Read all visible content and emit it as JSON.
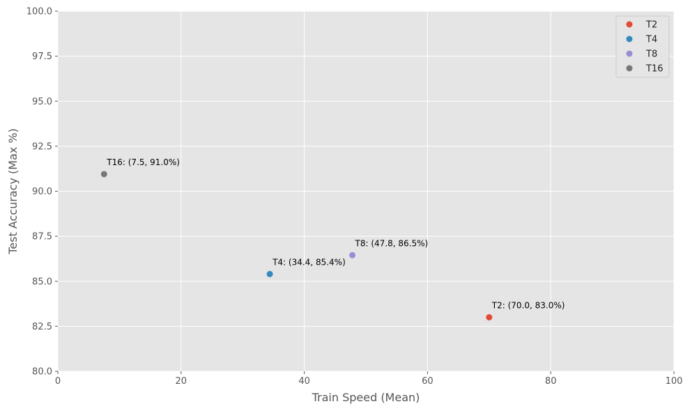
{
  "chart_data": {
    "type": "scatter",
    "title": "",
    "xlabel": "Train Speed (Mean)",
    "ylabel": "Test Accuracy (Max %)",
    "xlim": [
      0,
      100
    ],
    "ylim": [
      80,
      100
    ],
    "xticks": [
      0,
      20,
      40,
      60,
      80,
      100
    ],
    "xtick_labels": [
      "0",
      "20",
      "40",
      "60",
      "80",
      "100"
    ],
    "yticks": [
      80,
      82.5,
      85,
      87.5,
      90,
      92.5,
      95,
      97.5,
      100
    ],
    "ytick_labels": [
      "80.0",
      "82.5",
      "85.0",
      "87.5",
      "90.0",
      "92.5",
      "95.0",
      "97.5",
      "100.0"
    ],
    "grid": true,
    "legend_position": "top-right",
    "series": [
      {
        "name": "T2",
        "color": "#E24A33",
        "x": 70.0,
        "y": 83.0,
        "annotation": "T2: (70.0, 83.0%)"
      },
      {
        "name": "T4",
        "color": "#348ABD",
        "x": 34.4,
        "y": 85.4,
        "annotation": "T4: (34.4, 85.4%)"
      },
      {
        "name": "T8",
        "color": "#988ED5",
        "x": 47.8,
        "y": 86.45,
        "annotation": "T8: (47.8, 86.5%)"
      },
      {
        "name": "T16",
        "color": "#777777",
        "x": 7.5,
        "y": 90.95,
        "annotation": "T16: (7.5, 91.0%)"
      }
    ]
  }
}
